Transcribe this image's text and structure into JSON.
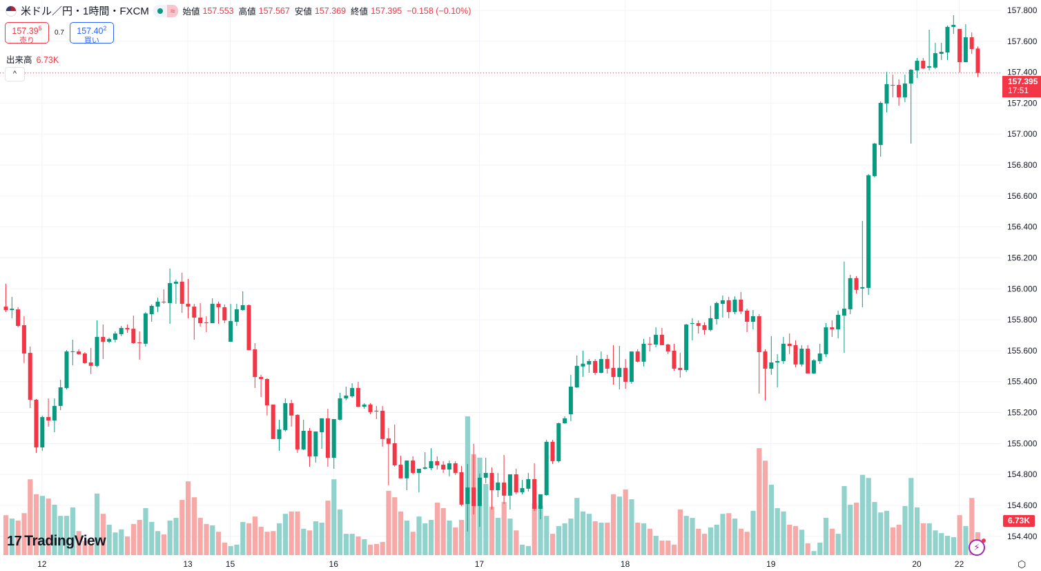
{
  "header": {
    "symbol": "米ドル／円・1時間・FXCM",
    "approx_icon": "≈",
    "open_label": "始値",
    "open": "157.553",
    "high_label": "高値",
    "high": "157.567",
    "low_label": "安値",
    "low": "157.369",
    "close_label": "終値",
    "close": "157.395",
    "change": "−0.158 (−0.10%)"
  },
  "trade": {
    "sell_price": "157.39",
    "sell_pip": "5",
    "sell_label": "売り",
    "spread": "0.7",
    "buy_price": "157.40",
    "buy_pip": "2",
    "buy_label": "買い"
  },
  "volume_legend": {
    "label": "出来高",
    "value": "6.73K"
  },
  "collapse_icon": "^",
  "logo": {
    "mark": "17",
    "text": "TradingView"
  },
  "price_tag": {
    "price": "157.395",
    "countdown": "17:51"
  },
  "volume_tag": "6.73K",
  "colors": {
    "up": "#089981",
    "down": "#f23645",
    "vol_up": "#92d2cc",
    "vol_down": "#f7a9a7",
    "grid": "#f0f3fa"
  },
  "chart_data": {
    "type": "candlestick",
    "title": "米ドル／円・1時間・FXCM",
    "ylim": [
      154.37,
      157.86
    ],
    "grid": true,
    "y_ticks": [
      "157.800",
      "157.600",
      "157.400",
      "157.200",
      "157.000",
      "156.800",
      "156.600",
      "156.400",
      "156.200",
      "156.000",
      "155.800",
      "155.600",
      "155.400",
      "155.200",
      "155.000",
      "154.800",
      "154.600",
      "154.400"
    ],
    "x_ticks": [
      {
        "label": "12",
        "candle": 6
      },
      {
        "label": "13",
        "candle": 30
      },
      {
        "label": "15",
        "candle": 37
      },
      {
        "label": "16",
        "candle": 54
      },
      {
        "label": "17",
        "candle": 78
      },
      {
        "label": "18",
        "candle": 102
      },
      {
        "label": "19",
        "candle": 126
      },
      {
        "label": "20",
        "candle": 150
      },
      {
        "label": "22",
        "candle": 157
      }
    ],
    "volume_unit": "K",
    "candles_ohlcv": [
      [
        155.885,
        156.033,
        155.85,
        155.863,
        11.8
      ],
      [
        155.863,
        155.948,
        155.81,
        155.872,
        10.8
      ],
      [
        155.867,
        155.881,
        155.751,
        155.76,
        10.2
      ],
      [
        155.765,
        155.823,
        155.52,
        155.582,
        12.4
      ],
      [
        155.586,
        155.627,
        155.229,
        155.283,
        22.4
      ],
      [
        155.283,
        155.288,
        154.939,
        154.975,
        18.0
      ],
      [
        154.975,
        155.18,
        154.953,
        155.171,
        17.5
      ],
      [
        155.171,
        155.292,
        155.109,
        155.149,
        16.7
      ],
      [
        155.149,
        155.292,
        155.073,
        155.243,
        14.9
      ],
      [
        155.243,
        155.412,
        155.216,
        155.363,
        11.6
      ],
      [
        155.359,
        155.604,
        155.35,
        155.595,
        11.6
      ],
      [
        155.595,
        155.671,
        155.506,
        155.596,
        14.1
      ],
      [
        155.595,
        155.609,
        155.573,
        155.578,
        7.1
      ],
      [
        155.582,
        155.591,
        155.515,
        155.52,
        4.2
      ],
      [
        155.524,
        155.618,
        155.449,
        155.502,
        2.9
      ],
      [
        155.502,
        155.796,
        155.493,
        155.689,
        18.2
      ],
      [
        155.689,
        155.769,
        155.546,
        155.658,
        12.2
      ],
      [
        155.658,
        155.685,
        155.649,
        155.676,
        9.0
      ],
      [
        155.671,
        155.725,
        155.654,
        155.711,
        6.7
      ],
      [
        155.707,
        155.76,
        155.694,
        155.747,
        7.6
      ],
      [
        155.747,
        155.769,
        155.716,
        155.738,
        5.5
      ],
      [
        155.742,
        155.827,
        155.645,
        155.649,
        9.2
      ],
      [
        155.654,
        155.725,
        155.542,
        155.649,
        10.4
      ],
      [
        155.645,
        155.85,
        155.627,
        155.841,
        13.9
      ],
      [
        155.836,
        155.899,
        155.787,
        155.89,
        9.8
      ],
      [
        155.885,
        155.943,
        155.85,
        155.917,
        7.1
      ],
      [
        155.917,
        155.997,
        155.903,
        155.912,
        6.1
      ],
      [
        155.908,
        156.131,
        155.774,
        156.037,
        10.2
      ],
      [
        156.033,
        156.06,
        155.903,
        156.046,
        11.0
      ],
      [
        156.046,
        156.104,
        155.845,
        155.903,
        16.3
      ],
      [
        155.903,
        156.064,
        155.81,
        155.885,
        21.8
      ],
      [
        155.885,
        155.903,
        155.671,
        155.814,
        17.1
      ],
      [
        155.814,
        155.908,
        155.756,
        155.778,
        11.0
      ],
      [
        155.783,
        155.823,
        155.72,
        155.778,
        9.2
      ],
      [
        155.778,
        155.939,
        155.778,
        155.903,
        8.8
      ],
      [
        155.903,
        155.917,
        155.774,
        155.881,
        6.9
      ],
      [
        155.881,
        155.899,
        155.778,
        155.796,
        3.7
      ],
      [
        155.658,
        155.903,
        155.658,
        155.792,
        2.7
      ],
      [
        155.787,
        155.903,
        155.76,
        155.868,
        3.1
      ],
      [
        155.863,
        155.984,
        155.859,
        155.894,
        9.8
      ],
      [
        155.894,
        155.899,
        155.604,
        155.604,
        9.4
      ],
      [
        155.609,
        155.649,
        155.359,
        155.43,
        11.4
      ],
      [
        155.43,
        155.444,
        155.301,
        155.417,
        8.4
      ],
      [
        155.417,
        155.422,
        155.181,
        155.247,
        6.9
      ],
      [
        155.252,
        155.252,
        155.029,
        155.029,
        7.1
      ],
      [
        155.029,
        155.154,
        154.953,
        155.091,
        9.4
      ],
      [
        155.087,
        155.292,
        155.078,
        155.261,
        12.2
      ],
      [
        155.261,
        155.283,
        155.109,
        155.181,
        12.9
      ],
      [
        155.185,
        155.189,
        154.939,
        154.962,
        12.9
      ],
      [
        154.962,
        155.154,
        154.957,
        155.082,
        7.8
      ],
      [
        155.082,
        155.1,
        154.85,
        154.917,
        7.3
      ],
      [
        154.917,
        155.078,
        154.877,
        155.078,
        10.0
      ],
      [
        155.073,
        155.163,
        154.966,
        155.163,
        9.6
      ],
      [
        155.163,
        155.225,
        154.85,
        154.908,
        16.1
      ],
      [
        154.908,
        155.158,
        154.837,
        155.158,
        22.4
      ],
      [
        155.154,
        155.328,
        155.149,
        155.292,
        13.5
      ],
      [
        155.292,
        155.368,
        155.279,
        155.31,
        6.3
      ],
      [
        155.305,
        155.39,
        155.296,
        155.359,
        6.3
      ],
      [
        155.359,
        155.399,
        155.234,
        155.238,
        5.5
      ],
      [
        155.238,
        155.261,
        155.225,
        155.252,
        4.7
      ],
      [
        155.252,
        155.261,
        155.189,
        155.203,
        3.1
      ],
      [
        155.212,
        155.243,
        155.158,
        155.207,
        3.3
      ],
      [
        155.212,
        155.243,
        154.98,
        155.029,
        3.9
      ],
      [
        155.033,
        155.1,
        154.73,
        154.998,
        19.0
      ],
      [
        155.002,
        155.122,
        154.85,
        154.859,
        17.1
      ],
      [
        154.863,
        154.921,
        154.775,
        154.775,
        12.9
      ],
      [
        154.775,
        154.89,
        154.698,
        154.89,
        10.2
      ],
      [
        154.89,
        154.917,
        154.801,
        154.81,
        6.9
      ],
      [
        154.81,
        154.837,
        154.685,
        154.837,
        11.4
      ],
      [
        154.837,
        154.944,
        154.832,
        154.846,
        9.4
      ],
      [
        154.841,
        154.97,
        154.828,
        154.886,
        10.4
      ],
      [
        154.886,
        154.917,
        154.832,
        154.859,
        15.5
      ],
      [
        154.863,
        154.886,
        154.81,
        154.832,
        13.9
      ],
      [
        154.832,
        154.89,
        154.788,
        154.872,
        10.2
      ],
      [
        154.872,
        154.886,
        154.797,
        154.81,
        8.2
      ],
      [
        154.815,
        154.855,
        154.596,
        154.605,
        10.4
      ],
      [
        154.609,
        154.868,
        154.431,
        154.716,
        41.0
      ],
      [
        154.716,
        154.998,
        154.542,
        154.596,
        29.8
      ],
      [
        154.596,
        154.806,
        154.462,
        154.779,
        28.8
      ],
      [
        154.779,
        154.908,
        154.743,
        154.81,
        21.0
      ],
      [
        154.81,
        154.846,
        154.573,
        154.698,
        14.3
      ],
      [
        154.698,
        154.81,
        154.654,
        154.748,
        11.0
      ],
      [
        154.748,
        154.926,
        154.609,
        154.663,
        15.7
      ],
      [
        154.663,
        154.801,
        154.573,
        154.801,
        10.8
      ],
      [
        154.801,
        154.837,
        154.672,
        154.685,
        7.3
      ],
      [
        154.685,
        154.765,
        154.672,
        154.712,
        3.1
      ],
      [
        154.708,
        154.81,
        154.69,
        154.77,
        2.7
      ],
      [
        154.77,
        154.872,
        154.564,
        154.578,
        15.3
      ],
      [
        154.578,
        154.667,
        154.511,
        154.672,
        14.7
      ],
      [
        154.667,
        155.024,
        154.663,
        155.011,
        11.6
      ],
      [
        155.011,
        155.024,
        154.868,
        154.886,
        6.3
      ],
      [
        154.886,
        155.136,
        154.877,
        155.131,
        8.6
      ],
      [
        155.131,
        155.176,
        155.127,
        155.163,
        9.4
      ],
      [
        155.189,
        155.444,
        155.145,
        155.368,
        10.8
      ],
      [
        155.363,
        155.569,
        155.359,
        155.502,
        16.9
      ],
      [
        155.498,
        155.6,
        155.43,
        155.516,
        12.9
      ],
      [
        155.511,
        155.546,
        155.457,
        155.533,
        12.2
      ],
      [
        155.533,
        155.546,
        155.444,
        155.457,
        10.0
      ],
      [
        155.457,
        155.595,
        155.453,
        155.546,
        9.6
      ],
      [
        155.546,
        155.573,
        155.453,
        155.484,
        9.6
      ],
      [
        155.489,
        155.636,
        155.381,
        155.43,
        18.0
      ],
      [
        155.43,
        155.631,
        155.35,
        155.489,
        17.3
      ],
      [
        155.489,
        155.546,
        155.354,
        155.399,
        19.4
      ],
      [
        155.399,
        155.595,
        155.386,
        155.595,
        16.5
      ],
      [
        155.595,
        155.609,
        155.524,
        155.529,
        9.6
      ],
      [
        155.529,
        155.676,
        155.498,
        155.645,
        9.4
      ],
      [
        155.645,
        155.689,
        155.595,
        155.64,
        7.8
      ],
      [
        155.64,
        155.751,
        155.622,
        155.703,
        5.7
      ],
      [
        155.703,
        155.747,
        155.636,
        155.636,
        4.3
      ],
      [
        155.64,
        155.645,
        155.578,
        155.595,
        4.3
      ],
      [
        155.6,
        155.645,
        155.471,
        155.484,
        3.1
      ],
      [
        155.489,
        155.586,
        155.426,
        155.475,
        13.5
      ],
      [
        155.475,
        155.774,
        155.462,
        155.769,
        11.6
      ],
      [
        155.774,
        155.81,
        155.667,
        155.778,
        11.0
      ],
      [
        155.778,
        155.796,
        155.711,
        155.76,
        7.8
      ],
      [
        155.765,
        155.783,
        155.703,
        155.734,
        6.3
      ],
      [
        155.734,
        155.89,
        155.725,
        155.81,
        8.2
      ],
      [
        155.805,
        155.917,
        155.769,
        155.908,
        9.0
      ],
      [
        155.903,
        155.957,
        155.814,
        155.926,
        12.2
      ],
      [
        155.926,
        155.948,
        155.81,
        155.85,
        12.4
      ],
      [
        155.85,
        155.952,
        155.836,
        155.93,
        10.8
      ],
      [
        155.93,
        155.979,
        155.836,
        155.854,
        7.8
      ],
      [
        155.859,
        155.872,
        155.72,
        155.787,
        6.9
      ],
      [
        155.787,
        155.863,
        155.738,
        155.823,
        13.1
      ],
      [
        155.823,
        155.836,
        155.323,
        155.591,
        31.6
      ],
      [
        155.595,
        155.609,
        155.279,
        155.484,
        27.9
      ],
      [
        155.484,
        155.694,
        155.444,
        155.524,
        20.8
      ],
      [
        155.524,
        155.578,
        155.363,
        155.533,
        13.9
      ],
      [
        155.533,
        155.689,
        155.515,
        155.645,
        12.9
      ],
      [
        155.645,
        155.711,
        155.578,
        155.631,
        9.0
      ],
      [
        155.636,
        155.667,
        155.493,
        155.511,
        8.6
      ],
      [
        155.511,
        155.636,
        155.498,
        155.613,
        7.5
      ],
      [
        155.613,
        155.636,
        155.453,
        155.453,
        3.5
      ],
      [
        155.453,
        155.546,
        155.449,
        155.538,
        1.2
      ],
      [
        155.533,
        155.645,
        155.515,
        155.582,
        3.7
      ],
      [
        155.578,
        155.778,
        155.56,
        155.751,
        11.0
      ],
      [
        155.751,
        155.796,
        155.689,
        155.738,
        7.8
      ],
      [
        155.738,
        155.859,
        155.68,
        155.832,
        6.3
      ],
      [
        155.827,
        156.176,
        155.586,
        155.872,
        20.4
      ],
      [
        155.868,
        156.091,
        155.836,
        156.069,
        14.9
      ],
      [
        156.069,
        156.082,
        155.97,
        155.993,
        15.5
      ],
      [
        156.002,
        156.439,
        155.881,
        156.011,
        23.7
      ],
      [
        156.006,
        156.742,
        155.961,
        156.734,
        22.8
      ],
      [
        156.729,
        156.943,
        156.72,
        156.939,
        15.7
      ],
      [
        156.93,
        157.211,
        156.854,
        157.202,
        12.6
      ],
      [
        157.198,
        157.403,
        157.14,
        157.323,
        13.1
      ],
      [
        157.318,
        157.385,
        157.238,
        157.316,
        8.2
      ],
      [
        157.318,
        157.354,
        157.184,
        157.238,
        9.0
      ],
      [
        157.238,
        157.385,
        157.207,
        157.327,
        14.5
      ],
      [
        157.327,
        157.421,
        156.939,
        157.416,
        22.8
      ],
      [
        157.412,
        157.492,
        157.363,
        157.474,
        14.1
      ],
      [
        157.474,
        157.492,
        157.421,
        157.425,
        9.4
      ],
      [
        157.43,
        157.675,
        157.412,
        157.439,
        9.4
      ],
      [
        157.43,
        157.59,
        157.421,
        157.523,
        7.3
      ],
      [
        157.519,
        157.59,
        157.479,
        157.532,
        6.5
      ],
      [
        157.528,
        157.702,
        157.479,
        157.693,
        5.7
      ],
      [
        157.693,
        157.769,
        157.648,
        157.706,
        5.3
      ],
      [
        157.68,
        157.68,
        157.398,
        157.465,
        11.8
      ],
      [
        157.465,
        157.711,
        157.465,
        157.626,
        8.6
      ],
      [
        157.626,
        157.657,
        157.519,
        157.55,
        16.9
      ],
      [
        157.553,
        157.567,
        157.369,
        157.395,
        6.73
      ]
    ],
    "last_price": 157.395
  }
}
